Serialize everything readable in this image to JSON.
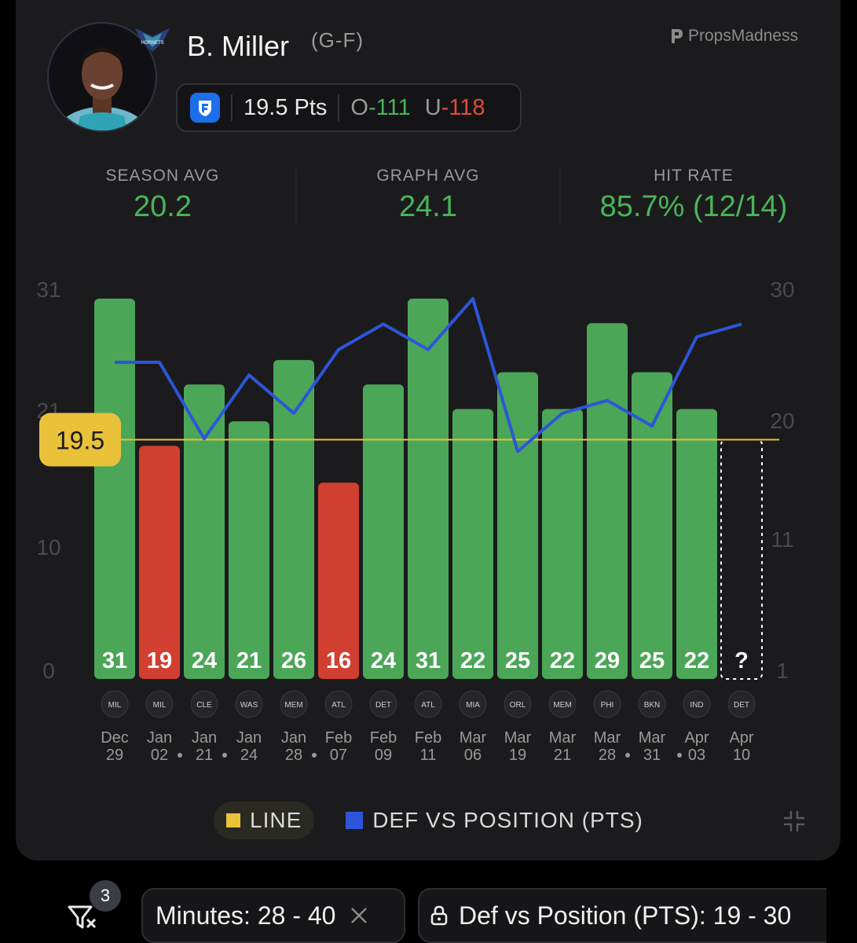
{
  "player": {
    "name": "B. Miller",
    "position": "(G-F)",
    "team": "Charlotte Hornets",
    "team_logo_text": "HORNETS"
  },
  "brand": {
    "name": "PropsMadness"
  },
  "prop": {
    "book": "FanDuel",
    "line_label": "19.5 Pts",
    "over_label": "O",
    "over_odds": "-111",
    "under_label": "U",
    "under_odds": "-118"
  },
  "stats": [
    {
      "label": "SEASON AVG",
      "value": "20.2"
    },
    {
      "label": "GRAPH AVG",
      "value": "24.1"
    },
    {
      "label": "HIT RATE",
      "value": "85.7% (12/14)"
    }
  ],
  "chart_data": {
    "type": "bar",
    "line": 19.5,
    "line_label": "19.5",
    "left_axis": {
      "ticks": [
        "0",
        "10",
        "21",
        "31"
      ],
      "range": [
        0,
        31
      ]
    },
    "right_axis": {
      "ticks": [
        "1",
        "11",
        "20",
        "30"
      ],
      "range": [
        1,
        30
      ]
    },
    "games": [
      {
        "date": [
          "Dec",
          "29"
        ],
        "opp": "MIL",
        "value": 31,
        "label": "31",
        "hit": true,
        "def": 25,
        "dot": ""
      },
      {
        "date": [
          "Jan",
          "02"
        ],
        "opp": "MIL",
        "value": 19,
        "label": "19",
        "hit": false,
        "def": 25,
        "dot": "right"
      },
      {
        "date": [
          "Jan",
          "21"
        ],
        "opp": "CLE",
        "value": 24,
        "label": "24",
        "hit": true,
        "def": 19,
        "dot": "right"
      },
      {
        "date": [
          "Jan",
          "24"
        ],
        "opp": "WAS",
        "value": 21,
        "label": "21",
        "hit": true,
        "def": 24,
        "dot": ""
      },
      {
        "date": [
          "Jan",
          "28"
        ],
        "opp": "MEM",
        "value": 26,
        "label": "26",
        "hit": true,
        "def": 21,
        "dot": "right"
      },
      {
        "date": [
          "Feb",
          "07"
        ],
        "opp": "ATL",
        "value": 16,
        "label": "16",
        "hit": false,
        "def": 26,
        "dot": ""
      },
      {
        "date": [
          "Feb",
          "09"
        ],
        "opp": "DET",
        "value": 24,
        "label": "24",
        "hit": true,
        "def": 28,
        "dot": ""
      },
      {
        "date": [
          "Feb",
          "11"
        ],
        "opp": "ATL",
        "value": 31,
        "label": "31",
        "hit": true,
        "def": 26,
        "dot": ""
      },
      {
        "date": [
          "Mar",
          "06"
        ],
        "opp": "MIA",
        "value": 22,
        "label": "22",
        "hit": true,
        "def": 30,
        "dot": ""
      },
      {
        "date": [
          "Mar",
          "19"
        ],
        "opp": "ORL",
        "value": 25,
        "label": "25",
        "hit": true,
        "def": 18,
        "dot": ""
      },
      {
        "date": [
          "Mar",
          "21"
        ],
        "opp": "MEM",
        "value": 22,
        "label": "22",
        "hit": true,
        "def": 21,
        "dot": ""
      },
      {
        "date": [
          "Mar",
          "28"
        ],
        "opp": "PHI",
        "value": 29,
        "label": "29",
        "hit": true,
        "def": 22,
        "dot": "right"
      },
      {
        "date": [
          "Mar",
          "31"
        ],
        "opp": "BKN",
        "value": 25,
        "label": "25",
        "hit": true,
        "def": 20,
        "dot": ""
      },
      {
        "date": [
          "Apr",
          "03"
        ],
        "opp": "IND",
        "value": 22,
        "label": "22",
        "hit": true,
        "def": 27,
        "dot": "left"
      },
      {
        "date": [
          "Apr",
          "10"
        ],
        "opp": "DET",
        "value": null,
        "label": "?",
        "hit": null,
        "def": 28,
        "dot": ""
      }
    ],
    "colors": {
      "hit": "#4ba657",
      "miss": "#d13f31",
      "line": "#e9c23a",
      "def": "#2d55d9"
    }
  },
  "legend": {
    "line_label": "LINE",
    "def_label": "DEF VS POSITION (PTS)"
  },
  "filters": {
    "count": "3",
    "minutes_label": "Minutes: 28 - 40",
    "def_label": "Def vs Position (PTS): 19 - 30"
  }
}
